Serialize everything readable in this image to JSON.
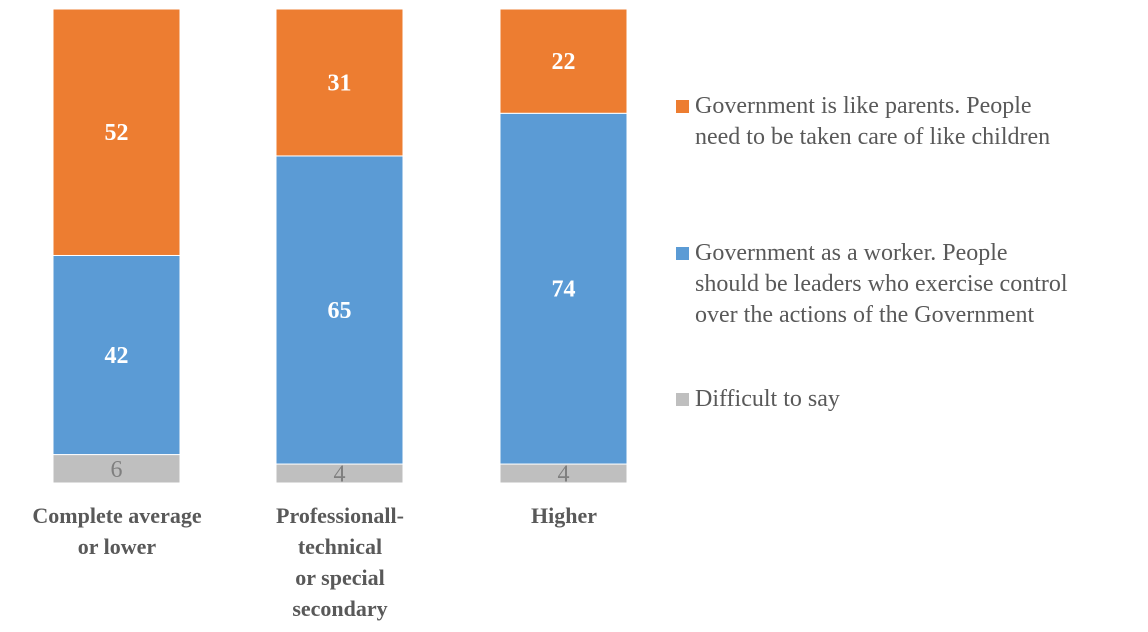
{
  "chart_data": {
    "type": "bar",
    "stacked": true,
    "categories": [
      "Complete average\nor lower",
      "Professionall-\ntechnical\nor special\nsecondary",
      "Higher"
    ],
    "series": [
      {
        "name": "Difficult to say",
        "values": [
          6,
          4,
          4
        ],
        "color": "#BFBFBF",
        "label_color": "#7F7F7F"
      },
      {
        "name": "Government as a worker. People\nshould be leaders who exercise control\nover the actions of the Government",
        "values": [
          42,
          65,
          74
        ],
        "color": "#5B9BD5",
        "label_color": "#FFFFFF"
      },
      {
        "name": "Government is like parents. People\nneed to be taken care of like children",
        "values": [
          52,
          31,
          22
        ],
        "color": "#ED7D31",
        "label_color": "#FFFFFF"
      }
    ],
    "ylim": [
      0,
      100
    ],
    "grid": false,
    "legend_position": "right",
    "legend_order": [
      2,
      1,
      0
    ]
  }
}
